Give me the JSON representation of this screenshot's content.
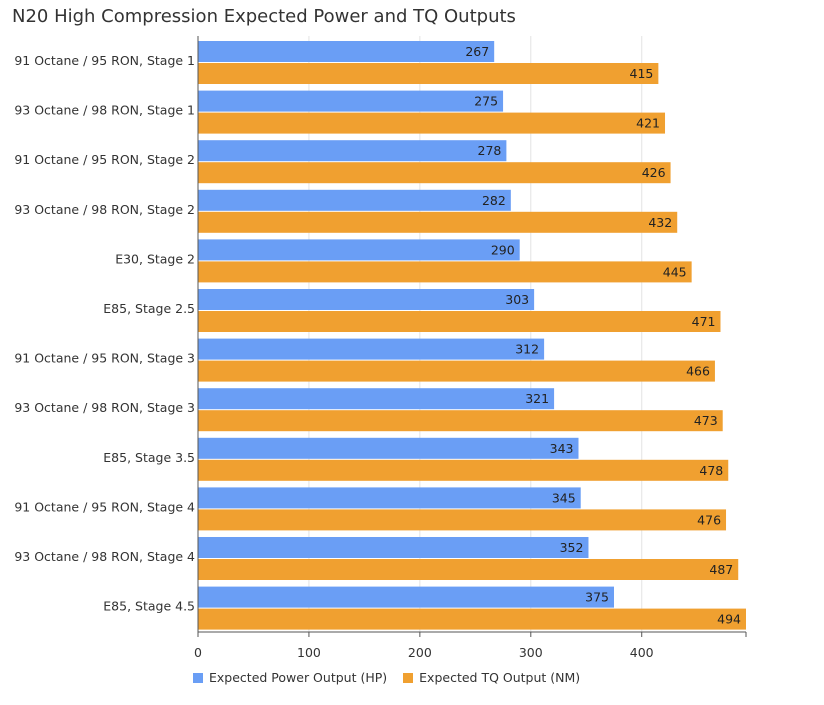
{
  "chart_data": {
    "type": "bar",
    "orientation": "horizontal",
    "title": "N20 High Compression Expected Power and TQ Outputs",
    "categories": [
      "91 Octane / 95 RON, Stage 1",
      "93 Octane / 98 RON, Stage 1",
      "91 Octane / 95 RON, Stage 2",
      "93 Octane / 98 RON, Stage 2",
      "E30, Stage 2",
      "E85, Stage 2.5",
      "91 Octane / 95 RON, Stage 3",
      "93 Octane / 98 RON, Stage 3",
      "E85, Stage 3.5",
      "91 Octane / 95 RON, Stage 4",
      "93 Octane / 98 RON, Stage 4",
      "E85, Stage 4.5"
    ],
    "series": [
      {
        "name": "Expected Power Output (HP)",
        "color": "#6a9ef5",
        "values": [
          267,
          275,
          278,
          282,
          290,
          303,
          312,
          321,
          343,
          345,
          352,
          375
        ]
      },
      {
        "name": "Expected TQ Output (NM)",
        "color": "#f0a030",
        "values": [
          415,
          421,
          426,
          432,
          445,
          471,
          466,
          473,
          478,
          476,
          487,
          494
        ]
      }
    ],
    "xticks": [
      "0",
      "100",
      "200",
      "300",
      "400"
    ],
    "xlim": [
      0,
      494
    ],
    "grid": true,
    "legend_position": "bottom"
  }
}
